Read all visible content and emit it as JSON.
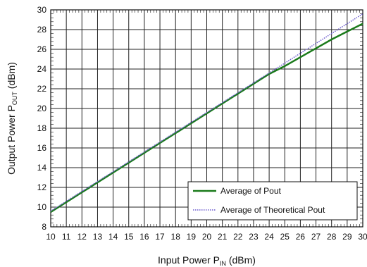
{
  "chart_data": {
    "type": "line",
    "x": [
      10,
      11,
      12,
      13,
      14,
      15,
      16,
      17,
      18,
      19,
      20,
      21,
      22,
      23,
      24,
      25,
      26,
      27,
      28,
      29,
      30
    ],
    "xlim": [
      10,
      30
    ],
    "ylim": [
      8,
      30
    ],
    "xticks": [
      10,
      11,
      12,
      13,
      14,
      15,
      16,
      17,
      18,
      19,
      20,
      21,
      22,
      23,
      24,
      25,
      26,
      27,
      28,
      29,
      30
    ],
    "yticks": [
      8,
      10,
      12,
      14,
      16,
      18,
      20,
      22,
      24,
      26,
      28,
      30
    ],
    "xlabel_parts": [
      "Input Power P",
      "IN",
      " (dBm)"
    ],
    "ylabel_parts": [
      "Output Power P",
      "OUT",
      " (dBm)"
    ],
    "grid": true,
    "legend_position": "bottom-right",
    "series": [
      {
        "name": "Average of Pout",
        "color": "#1a7a1a",
        "style": "solid",
        "values": [
          9.5,
          10.5,
          11.5,
          12.5,
          13.5,
          14.5,
          15.5,
          16.5,
          17.5,
          18.5,
          19.5,
          20.5,
          21.5,
          22.5,
          23.5,
          24.3,
          25.2,
          26.1,
          27.0,
          27.8,
          28.6
        ]
      },
      {
        "name": "Average of Theoretical Pout",
        "color": "#6a5acd",
        "style": "dotted",
        "values": [
          9.6,
          10.6,
          11.6,
          12.6,
          13.6,
          14.6,
          15.6,
          16.6,
          17.6,
          18.6,
          19.6,
          20.6,
          21.6,
          22.6,
          23.6,
          24.6,
          25.6,
          26.6,
          27.6,
          28.6,
          29.6
        ]
      }
    ]
  }
}
